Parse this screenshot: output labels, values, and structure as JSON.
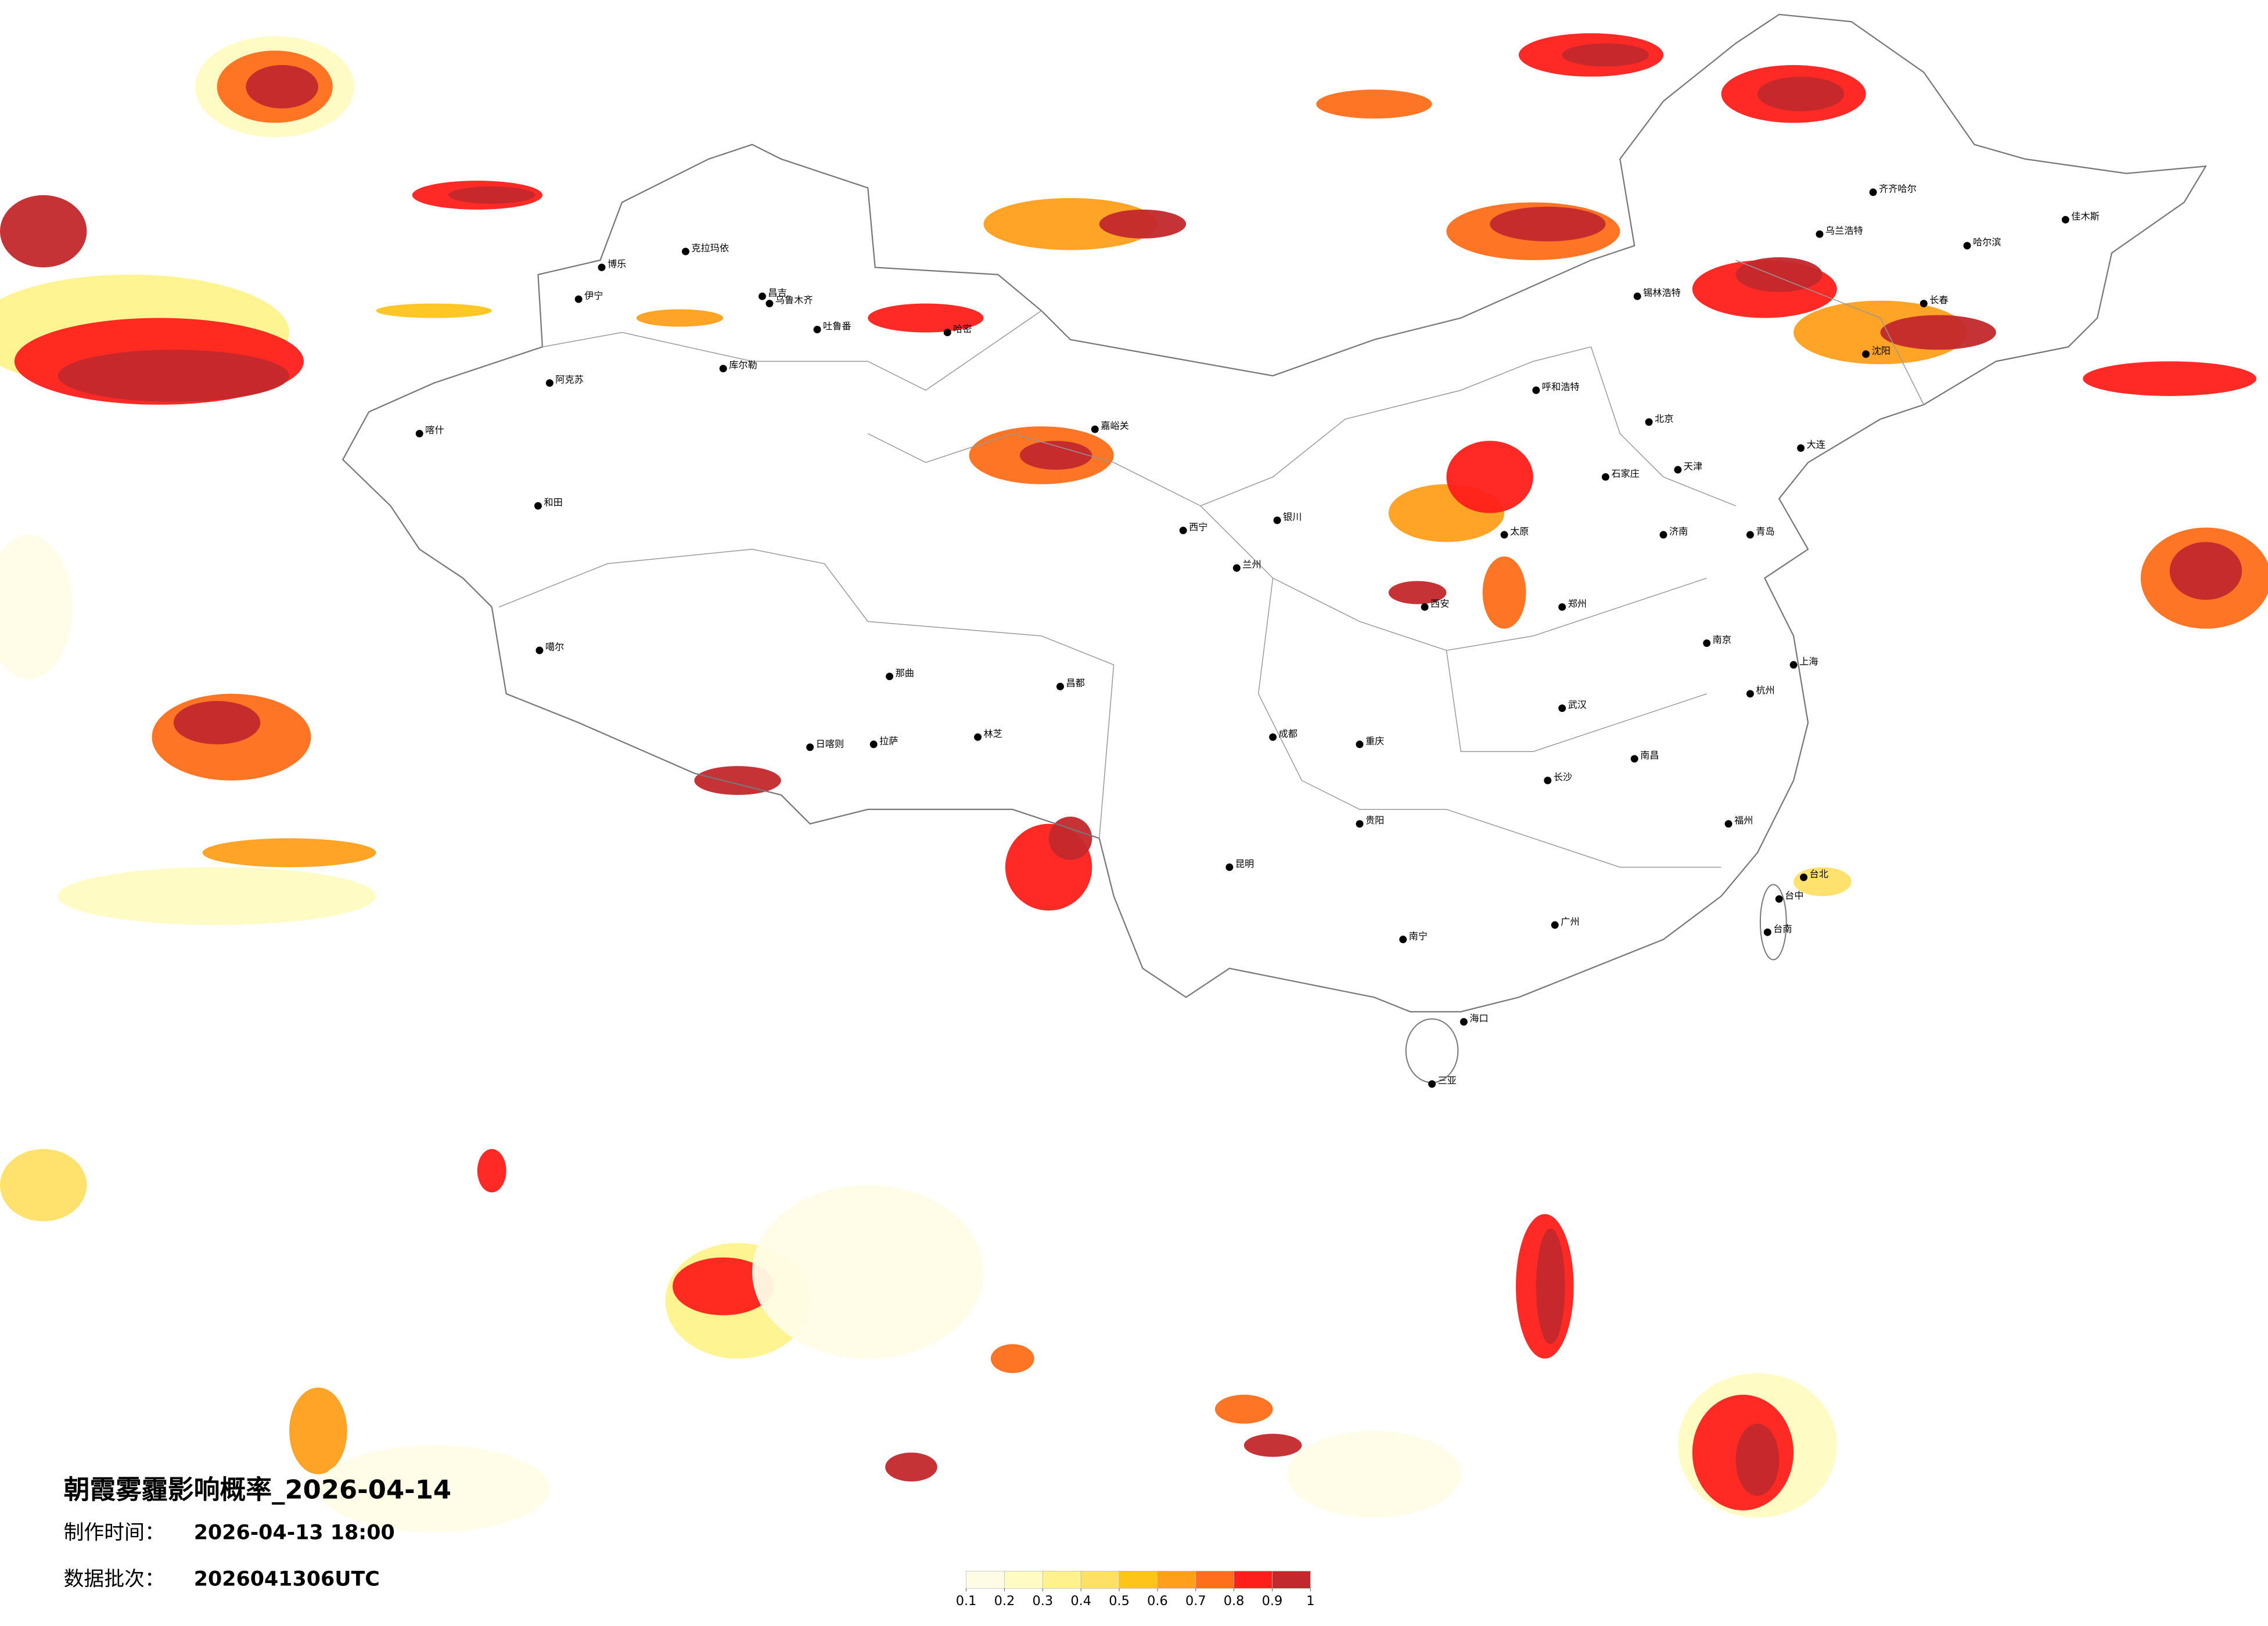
{
  "map": {
    "title": "朝霞雾霾影响概率_2026-04-14",
    "production_label": "制作时间：",
    "production_time": "2026-04-13 18:00",
    "batch_label": "数据批次：",
    "batch": "2026041306UTC",
    "cities": [
      "克拉玛依",
      "伊宁",
      "博乐",
      "昌吉",
      "乌鲁木齐",
      "吐鲁番",
      "哈密",
      "库尔勒",
      "阿克苏",
      "喀什",
      "和田",
      "噶尔",
      "日喀则",
      "拉萨",
      "那曲",
      "林芝",
      "昌都",
      "嘉峪关",
      "西宁",
      "兰州",
      "银川",
      "呼和浩特",
      "北京",
      "天津",
      "石家庄",
      "太原",
      "济南",
      "郑州",
      "西安",
      "成都",
      "重庆",
      "武汉",
      "长沙",
      "南昌",
      "南京",
      "上海",
      "杭州",
      "福州",
      "广州",
      "南宁",
      "贵阳",
      "昆明",
      "海口",
      "三亚",
      "哈尔滨",
      "长春",
      "沈阳",
      "大连",
      "青岛",
      "台北",
      "台中",
      "台南",
      "齐齐哈尔",
      "佳木斯",
      "锡林浩特",
      "乌兰浩特"
    ],
    "legend": {
      "ticks": [
        0.1,
        0.2,
        0.3,
        0.4,
        0.5,
        0.6,
        0.7,
        0.8,
        0.9,
        1
      ],
      "colors": [
        "#fffce6",
        "#fffbc2",
        "#fff28c",
        "#ffe066",
        "#ffc41a",
        "#ff9f1a",
        "#ff6e1a",
        "#ff1f1a",
        "#c3282c"
      ]
    }
  }
}
